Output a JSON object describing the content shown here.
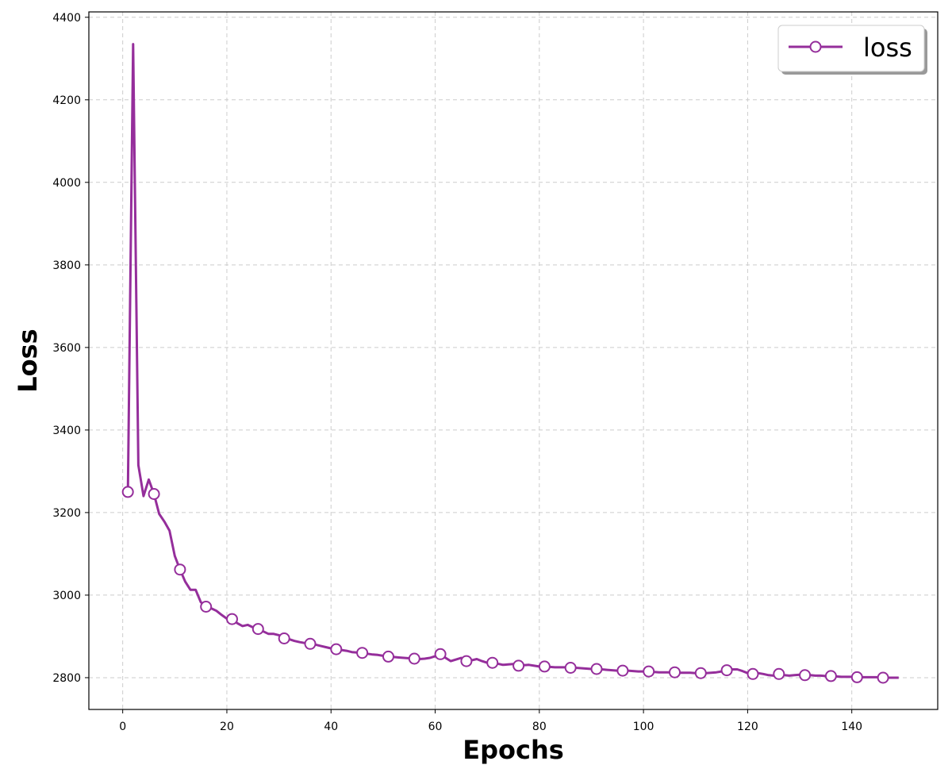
{
  "chart_data": {
    "type": "line",
    "title": "",
    "xlabel": "Epochs",
    "ylabel": "Loss",
    "xlim": [
      -6.5,
      156.5
    ],
    "ylim": [
      2723,
      4413
    ],
    "xticks": [
      0,
      20,
      40,
      60,
      80,
      100,
      120,
      140
    ],
    "yticks": [
      2800,
      3000,
      3200,
      3400,
      3600,
      3800,
      4000,
      4200,
      4400
    ],
    "grid": true,
    "legend_position": "top-right",
    "colors": {
      "line": "#952e9b",
      "marker_fill": "#ffffff",
      "grid": "#cccccc"
    },
    "series": [
      {
        "name": "loss",
        "marker": "circle",
        "marker_every": 5,
        "x": [
          1,
          2,
          3,
          4,
          5,
          6,
          7,
          8,
          9,
          10,
          11,
          12,
          13,
          14,
          15,
          16,
          17,
          18,
          19,
          20,
          21,
          22,
          23,
          24,
          25,
          26,
          27,
          28,
          29,
          30,
          31,
          32,
          33,
          34,
          35,
          36,
          37,
          38,
          39,
          40,
          41,
          42,
          43,
          44,
          45,
          46,
          47,
          48,
          49,
          50,
          51,
          52,
          53,
          54,
          55,
          56,
          57,
          58,
          59,
          60,
          61,
          62,
          63,
          64,
          65,
          66,
          67,
          68,
          69,
          70,
          71,
          72,
          73,
          74,
          75,
          76,
          77,
          78,
          79,
          80,
          81,
          82,
          83,
          84,
          85,
          86,
          87,
          88,
          89,
          90,
          91,
          92,
          93,
          94,
          95,
          96,
          97,
          98,
          99,
          100,
          101,
          102,
          103,
          104,
          105,
          106,
          107,
          108,
          109,
          110,
          111,
          112,
          113,
          114,
          115,
          116,
          117,
          118,
          119,
          120,
          121,
          122,
          123,
          124,
          125,
          126,
          127,
          128,
          129,
          130,
          131,
          132,
          133,
          134,
          135,
          136,
          137,
          138,
          139,
          140,
          141,
          142,
          143,
          144,
          145,
          146,
          147,
          148,
          149
        ],
        "y": [
          3250,
          4335,
          3315,
          3240,
          3280,
          3245,
          3197,
          3178,
          3156,
          3095,
          3062,
          3033,
          3013,
          3013,
          2983,
          2972,
          2968,
          2962,
          2952,
          2943,
          2942,
          2932,
          2925,
          2928,
          2922,
          2918,
          2912,
          2906,
          2906,
          2903,
          2895,
          2893,
          2889,
          2886,
          2884,
          2882,
          2880,
          2877,
          2874,
          2871,
          2869,
          2867,
          2865,
          2862,
          2861,
          2860,
          2858,
          2856,
          2855,
          2853,
          2851,
          2850,
          2849,
          2848,
          2847,
          2846,
          2845,
          2846,
          2848,
          2852,
          2857,
          2848,
          2840,
          2844,
          2848,
          2840,
          2842,
          2845,
          2840,
          2836,
          2836,
          2834,
          2831,
          2832,
          2833,
          2829,
          2830,
          2831,
          2829,
          2827,
          2827,
          2826,
          2825,
          2825,
          2825,
          2824,
          2824,
          2823,
          2822,
          2821,
          2821,
          2820,
          2819,
          2818,
          2817,
          2817,
          2817,
          2816,
          2815,
          2815,
          2815,
          2814,
          2813,
          2813,
          2813,
          2813,
          2812,
          2812,
          2812,
          2811,
          2811,
          2811,
          2812,
          2813,
          2815,
          2818,
          2820,
          2820,
          2816,
          2811,
          2809,
          2811,
          2809,
          2806,
          2805,
          2809,
          2806,
          2805,
          2806,
          2807,
          2806,
          2806,
          2805,
          2805,
          2804,
          2804,
          2803,
          2802,
          2802,
          2802,
          2801,
          2801,
          2801,
          2801,
          2801,
          2800,
          2800,
          2800,
          2800
        ]
      }
    ]
  }
}
